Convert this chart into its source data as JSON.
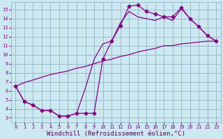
{
  "bg_color": "#cce8f0",
  "grid_color": "#99bbcc",
  "line_color": "#880088",
  "markersize": 2.5,
  "linewidth": 0.9,
  "xlabel": "Windchill (Refroidissement éolien,°C)",
  "xlabel_color": "#550055",
  "xlabel_fontsize": 6.5,
  "ylabel_ticks": [
    3,
    4,
    5,
    6,
    7,
    8,
    9,
    10,
    11,
    12,
    13,
    14,
    15
  ],
  "xlim": [
    -0.5,
    23.5
  ],
  "ylim": [
    2.5,
    15.8
  ],
  "xticks": [
    0,
    1,
    2,
    3,
    4,
    5,
    6,
    7,
    8,
    9,
    10,
    11,
    12,
    13,
    14,
    15,
    16,
    17,
    18,
    19,
    20,
    21,
    22,
    23
  ],
  "series1_x": [
    0,
    1,
    2,
    3,
    4,
    5,
    6,
    7,
    8,
    9,
    10,
    11,
    12,
    13,
    14,
    15,
    16,
    17,
    18,
    19,
    20,
    21,
    22,
    23
  ],
  "series1_y": [
    6.5,
    4.8,
    4.4,
    3.8,
    3.8,
    3.2,
    3.2,
    3.5,
    3.5,
    3.5,
    9.5,
    11.5,
    13.2,
    15.4,
    15.5,
    14.8,
    14.5,
    14.2,
    14.2,
    15.2,
    14.0,
    13.1,
    12.1,
    11.5
  ],
  "series2_x": [
    0,
    1,
    2,
    3,
    4,
    5,
    6,
    7,
    8,
    9,
    10,
    11,
    12,
    13,
    14,
    15,
    16,
    17,
    18,
    19,
    20,
    21,
    22,
    23
  ],
  "series2_y": [
    6.5,
    4.8,
    4.4,
    3.8,
    3.8,
    3.2,
    3.2,
    3.5,
    6.3,
    9.5,
    11.2,
    11.5,
    13.5,
    14.8,
    14.2,
    14.0,
    13.8,
    14.2,
    13.8,
    15.1,
    14.0,
    13.1,
    12.1,
    11.5
  ],
  "series3_x": [
    0,
    1,
    2,
    3,
    4,
    5,
    6,
    7,
    8,
    9,
    10,
    11,
    12,
    13,
    14,
    15,
    16,
    17,
    18,
    19,
    20,
    21,
    22,
    23
  ],
  "series3_y": [
    6.5,
    6.9,
    7.2,
    7.5,
    7.8,
    8.0,
    8.2,
    8.5,
    8.7,
    9.0,
    9.3,
    9.5,
    9.8,
    10.0,
    10.3,
    10.5,
    10.7,
    11.0,
    11.0,
    11.2,
    11.3,
    11.4,
    11.5,
    11.5
  ]
}
